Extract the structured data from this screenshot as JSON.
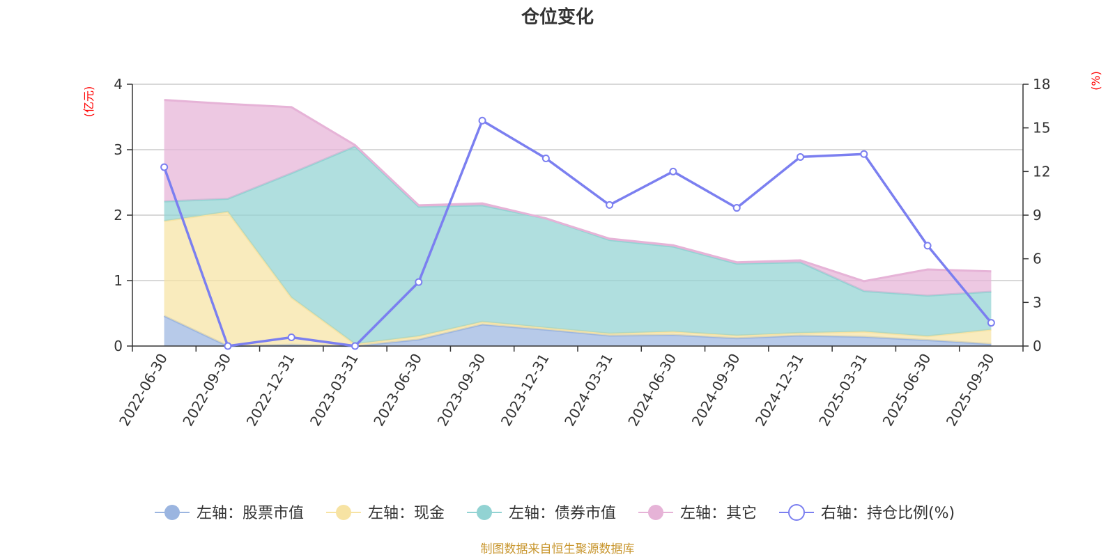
{
  "chart_data": {
    "type": "area",
    "title": "仓位变化",
    "left_axis_unit": "(亿元)",
    "right_axis_unit": "(%)",
    "categories": [
      "2022-06-30",
      "2022-09-30",
      "2022-12-31",
      "2023-03-31",
      "2023-06-30",
      "2023-09-30",
      "2023-12-31",
      "2024-03-31",
      "2024-06-30",
      "2024-09-30",
      "2024-12-31",
      "2025-03-31",
      "2025-06-30",
      "2025-09-30"
    ],
    "left_ylim": [
      0,
      4
    ],
    "left_ticks": [
      0,
      1,
      2,
      3,
      4
    ],
    "right_ylim": [
      0,
      18
    ],
    "right_ticks": [
      0,
      3,
      6,
      9,
      12,
      15,
      18
    ],
    "grid": true,
    "legend_position": "bottom",
    "stacked": true,
    "series": [
      {
        "name": "左轴：股票市值",
        "axis": "left",
        "kind": "area",
        "color": "#9bb5e0",
        "values": [
          0.46,
          0.0,
          0.02,
          0.0,
          0.1,
          0.33,
          0.25,
          0.16,
          0.17,
          0.12,
          0.16,
          0.14,
          0.09,
          0.03
        ]
      },
      {
        "name": "左轴：现金",
        "axis": "left",
        "kind": "area",
        "color": "#f7e3a3",
        "values": [
          1.45,
          2.05,
          0.72,
          0.03,
          0.05,
          0.04,
          0.03,
          0.03,
          0.05,
          0.04,
          0.04,
          0.08,
          0.06,
          0.22
        ]
      },
      {
        "name": "左轴：债券市值",
        "axis": "left",
        "kind": "area",
        "color": "#92d3d3",
        "values": [
          0.3,
          0.2,
          1.9,
          3.02,
          1.98,
          1.78,
          1.67,
          1.43,
          1.3,
          1.1,
          1.08,
          0.62,
          0.62,
          0.58
        ]
      },
      {
        "name": "左轴：其它",
        "axis": "left",
        "kind": "area",
        "color": "#e6b3d7",
        "values": [
          1.55,
          1.45,
          1.01,
          0.02,
          0.02,
          0.03,
          0.0,
          0.02,
          0.02,
          0.02,
          0.03,
          0.15,
          0.4,
          0.31
        ]
      },
      {
        "name": "右轴：持仓比例(%)",
        "axis": "right",
        "kind": "line",
        "color": "#7b7ff0",
        "values": [
          12.3,
          0.0,
          0.6,
          0.0,
          4.4,
          15.5,
          12.9,
          9.7,
          12.0,
          9.5,
          13.0,
          13.2,
          6.9,
          1.6
        ]
      }
    ]
  },
  "footer": "制图数据来自恒生聚源数据库"
}
